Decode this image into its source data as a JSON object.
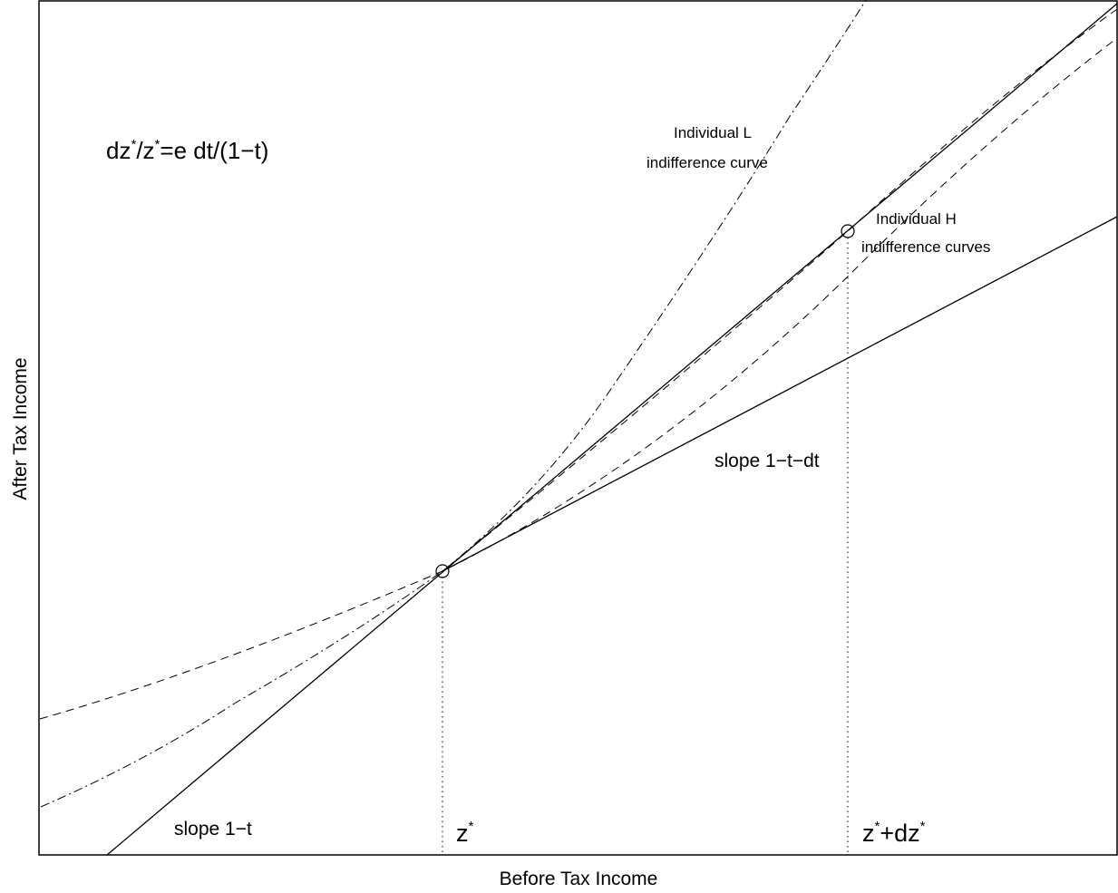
{
  "axes": {
    "xlabel": "Before Tax Income",
    "ylabel": "After Tax Income"
  },
  "annotations": {
    "formula": {
      "p1": "dz",
      "sup1": "*",
      "p2": "/z",
      "sup2": "*",
      "p3": "=e dt/(1−t)"
    },
    "indiv_l_line1": "Individual L",
    "indiv_l_line2": "indifference curve",
    "indiv_h_line1": "Individual H",
    "indiv_h_line2": "indifference curves",
    "slope_upper": "slope 1−t−dt",
    "slope_lower": "slope 1−t",
    "zstar": {
      "base": "z",
      "sup": "*"
    },
    "zdz": {
      "base1": "z",
      "sup1": "*",
      "mid": "+dz",
      "sup2": "*"
    }
  },
  "colors": {
    "line": "#000000",
    "background": "#ffffff"
  }
}
